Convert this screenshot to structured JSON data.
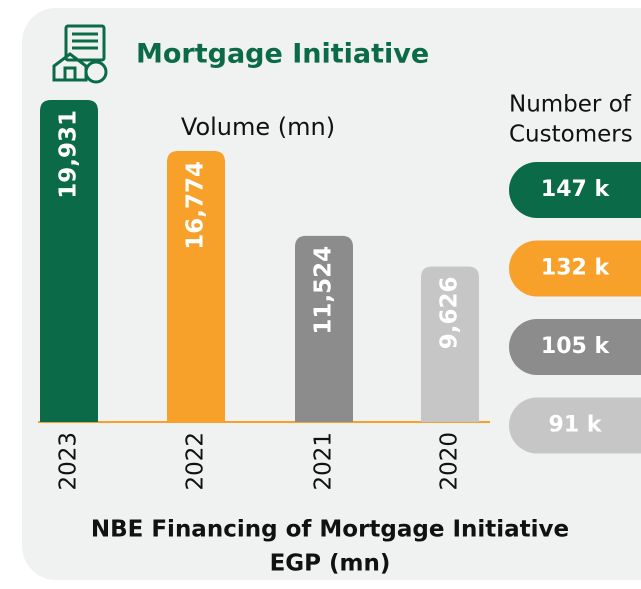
{
  "chart_data": {
    "type": "bar",
    "title": "Mortgage Initiative",
    "subtitle": "Volume (mn)",
    "categories": [
      "2023",
      "2022",
      "2021",
      "2020"
    ],
    "values": [
      19931,
      16774,
      11524,
      9626
    ],
    "value_labels": [
      "19,931",
      "16,774",
      "11,524",
      "9,626"
    ],
    "colors": [
      "#0b6b48",
      "#f7a12a",
      "#8c8c8c",
      "#c6c6c6"
    ],
    "customers": {
      "title": [
        "Number of",
        "Customers"
      ],
      "values": [
        147,
        132,
        105,
        91
      ],
      "value_labels": [
        "147 k",
        "132 k",
        "105 k",
        "91 k"
      ]
    },
    "caption": [
      "NBE Financing of Mortgage Initiative",
      "EGP (mn)"
    ]
  }
}
